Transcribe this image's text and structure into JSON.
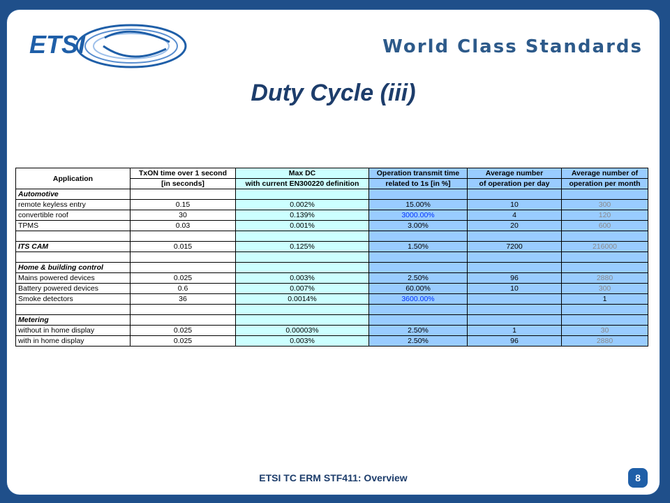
{
  "header": {
    "logo_text": "ETSI",
    "tagline": "World Class Standards"
  },
  "title": "Duty Cycle (iii)",
  "table": {
    "headers": [
      [
        "Application",
        "TxON time over 1 second",
        "Max DC",
        "Operation transmit time",
        "Average number",
        "Average number of"
      ],
      [
        "",
        "[in seconds]",
        "with current EN300220 definition",
        "related to 1s [in %]",
        "of operation per day",
        "operation per month"
      ]
    ],
    "rows": [
      {
        "type": "section",
        "label": "Automotive",
        "cells": [
          "",
          "",
          "",
          "",
          ""
        ]
      },
      {
        "type": "data",
        "label": "remote keyless entry",
        "cells": [
          "0.15",
          "0.002%",
          "15.00%",
          "10",
          "300"
        ]
      },
      {
        "type": "data",
        "label": "convertible roof",
        "cells": [
          "30",
          "0.139%",
          "3000.00%",
          "4",
          "120"
        ]
      },
      {
        "type": "data",
        "label": "TPMS",
        "cells": [
          "0.03",
          "0.001%",
          "3.00%",
          "20",
          "600"
        ]
      },
      {
        "type": "blank",
        "label": "",
        "cells": [
          "",
          "",
          "",
          "",
          ""
        ]
      },
      {
        "type": "section",
        "label": "ITS CAM",
        "cells": [
          "0.015",
          "0.125%",
          "1.50%",
          "7200",
          "216000"
        ]
      },
      {
        "type": "blank",
        "label": "",
        "cells": [
          "",
          "",
          "",
          "",
          ""
        ]
      },
      {
        "type": "section",
        "label": "Home & building control",
        "cells": [
          "",
          "",
          "",
          "",
          ""
        ]
      },
      {
        "type": "data",
        "label": "Mains powered devices",
        "cells": [
          "0.025",
          "0.003%",
          "2.50%",
          "96",
          "2880"
        ]
      },
      {
        "type": "data",
        "label": "Battery powered devices",
        "cells": [
          "0.6",
          "0.007%",
          "60.00%",
          "10",
          "300"
        ]
      },
      {
        "type": "data",
        "label": "Smoke detectors",
        "cells": [
          "36",
          "0.0014%",
          "3600.00%",
          "",
          "1"
        ]
      },
      {
        "type": "blank",
        "label": "",
        "cells": [
          "",
          "",
          "",
          "",
          ""
        ]
      },
      {
        "type": "section",
        "label": "Metering",
        "cells": [
          "",
          "",
          "",
          "",
          ""
        ]
      },
      {
        "type": "data",
        "label": "without in home display",
        "cells": [
          "0.025",
          "0.00003%",
          "2.50%",
          "1",
          "30"
        ]
      },
      {
        "type": "data",
        "label": "with in home display",
        "cells": [
          "0.025",
          "0.003%",
          "2.50%",
          "96",
          "2880"
        ]
      }
    ],
    "highlighted_blue_values": [
      "3000.00%",
      "3600.00%"
    ],
    "grey_column_except": [
      "1"
    ]
  },
  "footer": {
    "text": "ETSI TC ERM STF411: Overview",
    "page": "8"
  },
  "colors": {
    "background": "#1f4f8a",
    "title": "#1d3d6b",
    "cyan_column": "#ccffff",
    "blue_column": "#99ccff"
  }
}
